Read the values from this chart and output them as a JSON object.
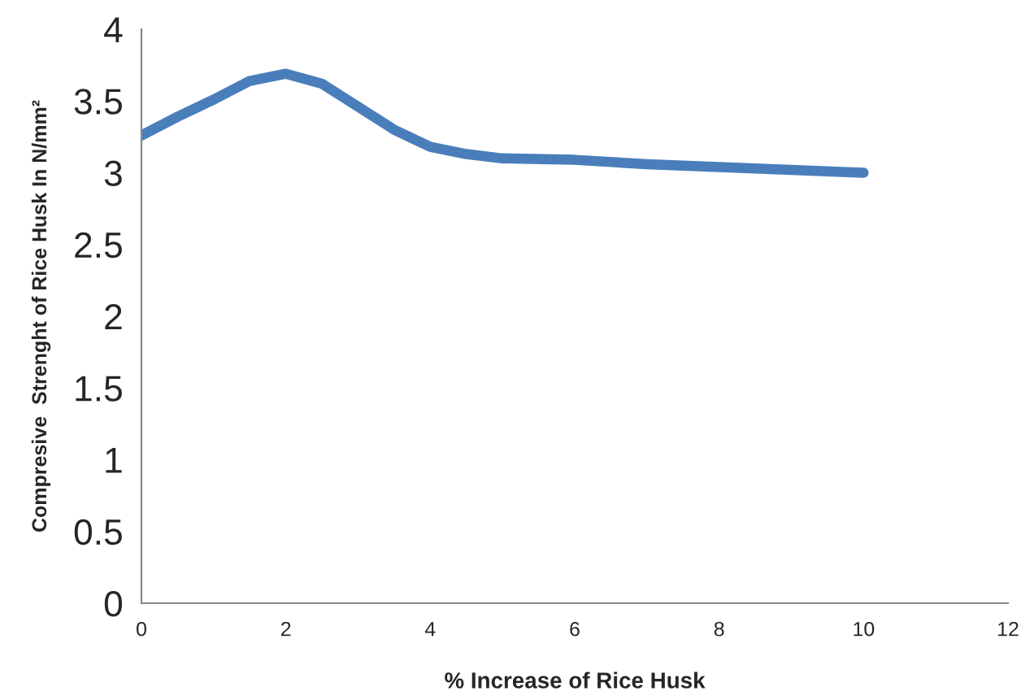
{
  "chart_data": {
    "type": "line",
    "xlabel": "% Increase of Rice Husk",
    "ylabel": "Compresive  Strenght of Rice Husk In N/mm²",
    "x": [
      0,
      0.5,
      1,
      1.5,
      2,
      2.5,
      3,
      3.5,
      4,
      4.5,
      5,
      6,
      7,
      8,
      9,
      10
    ],
    "series": [
      {
        "color": "#4a7ebb",
        "values": [
          3.26,
          3.39,
          3.51,
          3.64,
          3.69,
          3.62,
          3.46,
          3.3,
          3.18,
          3.13,
          3.1,
          3.09,
          3.06,
          3.04,
          3.02,
          3.0
        ]
      }
    ],
    "xlim": [
      0,
      12
    ],
    "xticks": [
      0,
      2,
      4,
      6,
      8,
      10,
      12
    ],
    "ylim": [
      0,
      4
    ],
    "yticks": [
      0,
      0.5,
      1,
      1.5,
      2,
      2.5,
      3,
      3.5,
      4
    ],
    "grid": false,
    "marker": "none",
    "line_style": "solid"
  }
}
